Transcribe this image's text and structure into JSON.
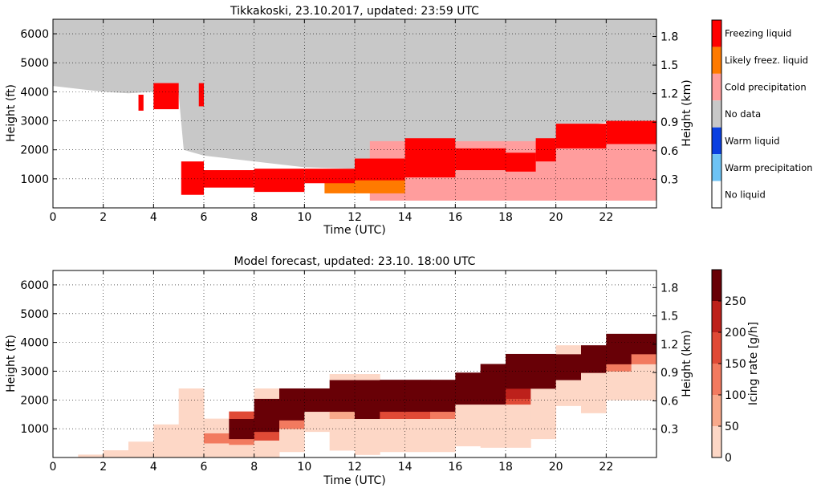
{
  "chart_data": [
    {
      "type": "heatmap",
      "title": "Tikkakoski, 23.10.2017, updated: 23:59 UTC",
      "xlabel": "Time (UTC)",
      "ylabel": "Height (ft)",
      "ylabel_right": "Height (km)",
      "xlim": [
        0,
        24
      ],
      "ylim": [
        0,
        6500
      ],
      "xticks": [
        "0",
        "2",
        "4",
        "6",
        "8",
        "10",
        "12",
        "14",
        "16",
        "18",
        "20",
        "22"
      ],
      "yticks": [
        "1000",
        "2000",
        "3000",
        "4000",
        "5000",
        "6000"
      ],
      "yticks_right": [
        "0.3",
        "0.6",
        "0.9",
        "1.2",
        "1.5",
        "1.8"
      ],
      "grid": true,
      "legend": {
        "placement": "right",
        "entries": [
          {
            "label": "Freezing liquid",
            "color": "#ff0000"
          },
          {
            "label": "Likely freez. liquid",
            "color": "#ff7a00"
          },
          {
            "label": "Cold precipitation",
            "color": "#ff9d9d"
          },
          {
            "label": "No data",
            "color": "#c8c8c8"
          },
          {
            "label": "Warm liquid",
            "color": "#0a3fe0"
          },
          {
            "label": "Warm precipitation",
            "color": "#6ec3f5"
          },
          {
            "label": "No liquid",
            "color": "#ffffff"
          }
        ]
      },
      "regions": {
        "no_data_top": [
          [
            0,
            4200
          ],
          [
            2,
            4000
          ],
          [
            3,
            3950
          ],
          [
            4,
            4000
          ],
          [
            5,
            3900
          ],
          [
            5.2,
            2000
          ],
          [
            6,
            1800
          ],
          [
            10,
            1400
          ],
          [
            12,
            1350
          ],
          [
            14,
            2050
          ],
          [
            16,
            1850
          ],
          [
            18,
            1800
          ],
          [
            19.5,
            1800
          ],
          [
            20,
            2400
          ],
          [
            21,
            2800
          ],
          [
            22,
            2950
          ],
          [
            24,
            3000
          ]
        ],
        "freezing_liquid_band": [
          {
            "x": [
              5.1,
              6.0
            ],
            "bottom": 450,
            "top": 1600
          },
          {
            "x": [
              6.0,
              8.0
            ],
            "bottom": 700,
            "top": 1300
          },
          {
            "x": [
              8.0,
              10.0
            ],
            "bottom": 550,
            "top": 1350
          },
          {
            "x": [
              10.0,
              12.0
            ],
            "bottom": 850,
            "top": 1350
          },
          {
            "x": [
              12.0,
              14.0
            ],
            "bottom": 950,
            "top": 1700
          },
          {
            "x": [
              14.0,
              16.0
            ],
            "bottom": 1050,
            "top": 2400
          },
          {
            "x": [
              16.0,
              18.0
            ],
            "bottom": 1300,
            "top": 2050
          },
          {
            "x": [
              18.0,
              19.2
            ],
            "bottom": 1250,
            "top": 1900
          },
          {
            "x": [
              19.2,
              20.0
            ],
            "bottom": 1600,
            "top": 2400
          },
          {
            "x": [
              20.0,
              22.0
            ],
            "bottom": 2050,
            "top": 2900
          },
          {
            "x": [
              22.0,
              24.0
            ],
            "bottom": 2200,
            "top": 3000
          }
        ],
        "freezing_liquid_patches": [
          {
            "x": [
              4.0,
              5.0
            ],
            "bottom": 3400,
            "top": 4300
          },
          {
            "x": [
              5.8,
              6.0
            ],
            "bottom": 3500,
            "top": 4300
          },
          {
            "x": [
              3.4,
              3.6
            ],
            "bottom": 3350,
            "top": 3900
          }
        ],
        "likely_freez_patch": {
          "x": [
            10.8,
            14.0
          ],
          "bottom": 500,
          "top": 1000
        },
        "cold_precip_region": {
          "x": [
            12.6,
            24.0
          ],
          "bottom": 250,
          "top": 2300
        }
      }
    },
    {
      "type": "heatmap",
      "title": "Model forecast, updated: 23.10. 18:00 UTC",
      "xlabel": "Time (UTC)",
      "ylabel": "Height (ft)",
      "ylabel_right": "Height (km)",
      "xlim": [
        0,
        24
      ],
      "ylim": [
        0,
        6500
      ],
      "xticks": [
        "0",
        "2",
        "4",
        "6",
        "8",
        "10",
        "12",
        "14",
        "16",
        "18",
        "20",
        "22"
      ],
      "yticks": [
        "1000",
        "2000",
        "3000",
        "4000",
        "5000",
        "6000"
      ],
      "yticks_right": [
        "0.3",
        "0.6",
        "0.9",
        "1.2",
        "1.5",
        "1.8"
      ],
      "grid": true,
      "colorbar": {
        "label": "Icing rate [g/h]",
        "ticks": [
          "0",
          "50",
          "100",
          "150",
          "200",
          "250"
        ],
        "levels": [
          0,
          50,
          100,
          150,
          200,
          250,
          300
        ],
        "colors": [
          "#fdd7c6",
          "#f8a98b",
          "#f27a5f",
          "#e04a36",
          "#bd211b",
          "#680006"
        ]
      },
      "cells": [
        {
          "x": [
            1,
            2
          ],
          "y": [
            0,
            100
          ],
          "level": 0
        },
        {
          "x": [
            2,
            3
          ],
          "y": [
            0,
            250
          ],
          "level": 0
        },
        {
          "x": [
            3,
            4
          ],
          "y": [
            0,
            550
          ],
          "level": 0
        },
        {
          "x": [
            4,
            5
          ],
          "y": [
            0,
            1150
          ],
          "level": 0
        },
        {
          "x": [
            5,
            6
          ],
          "y": [
            0,
            2400
          ],
          "level": 0
        },
        {
          "x": [
            6,
            7
          ],
          "y": [
            0,
            500
          ],
          "level": 0
        },
        {
          "x": [
            6,
            7
          ],
          "y": [
            500,
            850
          ],
          "level": 2
        },
        {
          "x": [
            6,
            7
          ],
          "y": [
            850,
            1350
          ],
          "level": 0
        },
        {
          "x": [
            7,
            8
          ],
          "y": [
            0,
            450
          ],
          "level": 0
        },
        {
          "x": [
            7,
            8
          ],
          "y": [
            450,
            650
          ],
          "level": 2
        },
        {
          "x": [
            7,
            8
          ],
          "y": [
            650,
            1350
          ],
          "level": 5
        },
        {
          "x": [
            7,
            8
          ],
          "y": [
            1350,
            1600
          ],
          "level": 3
        },
        {
          "x": [
            8,
            9
          ],
          "y": [
            0,
            600
          ],
          "level": 0
        },
        {
          "x": [
            8,
            9
          ],
          "y": [
            600,
            900
          ],
          "level": 3
        },
        {
          "x": [
            8,
            9
          ],
          "y": [
            900,
            2050
          ],
          "level": 5
        },
        {
          "x": [
            8,
            9
          ],
          "y": [
            2050,
            2400
          ],
          "level": 0
        },
        {
          "x": [
            9,
            10
          ],
          "y": [
            200,
            1000
          ],
          "level": 0
        },
        {
          "x": [
            9,
            10
          ],
          "y": [
            1000,
            1300
          ],
          "level": 2
        },
        {
          "x": [
            9,
            10
          ],
          "y": [
            1300,
            2400
          ],
          "level": 5
        },
        {
          "x": [
            10,
            11
          ],
          "y": [
            900,
            1600
          ],
          "level": 0
        },
        {
          "x": [
            10,
            11
          ],
          "y": [
            1600,
            2400
          ],
          "level": 5
        },
        {
          "x": [
            11,
            12
          ],
          "y": [
            250,
            1350
          ],
          "level": 0
        },
        {
          "x": [
            11,
            12
          ],
          "y": [
            1350,
            1600
          ],
          "level": 1
        },
        {
          "x": [
            11,
            12
          ],
          "y": [
            1600,
            2700
          ],
          "level": 5
        },
        {
          "x": [
            11,
            12
          ],
          "y": [
            2700,
            2900
          ],
          "level": 0
        },
        {
          "x": [
            12,
            13
          ],
          "y": [
            100,
            1350
          ],
          "level": 0
        },
        {
          "x": [
            12,
            13
          ],
          "y": [
            1350,
            2700
          ],
          "level": 5
        },
        {
          "x": [
            12,
            13
          ],
          "y": [
            2700,
            2900
          ],
          "level": 0
        },
        {
          "x": [
            13,
            14
          ],
          "y": [
            200,
            1350
          ],
          "level": 0
        },
        {
          "x": [
            13,
            14
          ],
          "y": [
            1350,
            1600
          ],
          "level": 3
        },
        {
          "x": [
            13,
            14
          ],
          "y": [
            1600,
            2700
          ],
          "level": 5
        },
        {
          "x": [
            14,
            15
          ],
          "y": [
            200,
            1350
          ],
          "level": 0
        },
        {
          "x": [
            14,
            15
          ],
          "y": [
            1350,
            1600
          ],
          "level": 3
        },
        {
          "x": [
            14,
            15
          ],
          "y": [
            1600,
            2700
          ],
          "level": 5
        },
        {
          "x": [
            15,
            16
          ],
          "y": [
            200,
            1350
          ],
          "level": 0
        },
        {
          "x": [
            15,
            16
          ],
          "y": [
            1350,
            1600
          ],
          "level": 2
        },
        {
          "x": [
            15,
            16
          ],
          "y": [
            1600,
            2700
          ],
          "level": 5
        },
        {
          "x": [
            16,
            17
          ],
          "y": [
            400,
            1850
          ],
          "level": 0
        },
        {
          "x": [
            16,
            17
          ],
          "y": [
            1850,
            2950
          ],
          "level": 5
        },
        {
          "x": [
            17,
            18
          ],
          "y": [
            350,
            1850
          ],
          "level": 0
        },
        {
          "x": [
            17,
            18
          ],
          "y": [
            1850,
            3250
          ],
          "level": 5
        },
        {
          "x": [
            18,
            19
          ],
          "y": [
            350,
            1850
          ],
          "level": 0
        },
        {
          "x": [
            18,
            19
          ],
          "y": [
            1850,
            2050
          ],
          "level": 3
        },
        {
          "x": [
            18,
            19
          ],
          "y": [
            2050,
            2400
          ],
          "level": 4
        },
        {
          "x": [
            18,
            19
          ],
          "y": [
            2400,
            3600
          ],
          "level": 5
        },
        {
          "x": [
            19,
            20
          ],
          "y": [
            650,
            2400
          ],
          "level": 0
        },
        {
          "x": [
            19,
            20
          ],
          "y": [
            2400,
            3600
          ],
          "level": 5
        },
        {
          "x": [
            20,
            21
          ],
          "y": [
            1800,
            2700
          ],
          "level": 0
        },
        {
          "x": [
            20,
            21
          ],
          "y": [
            2700,
            3600
          ],
          "level": 5
        },
        {
          "x": [
            20,
            21
          ],
          "y": [
            3600,
            3900
          ],
          "level": 0
        },
        {
          "x": [
            21,
            22
          ],
          "y": [
            1550,
            2950
          ],
          "level": 0
        },
        {
          "x": [
            21,
            22
          ],
          "y": [
            2950,
            3900
          ],
          "level": 5
        },
        {
          "x": [
            22,
            23
          ],
          "y": [
            2000,
            3000
          ],
          "level": 0
        },
        {
          "x": [
            22,
            23
          ],
          "y": [
            3000,
            3250
          ],
          "level": 2
        },
        {
          "x": [
            22,
            23
          ],
          "y": [
            3250,
            4300
          ],
          "level": 5
        },
        {
          "x": [
            23,
            24
          ],
          "y": [
            2000,
            3250
          ],
          "level": 0
        },
        {
          "x": [
            23,
            24
          ],
          "y": [
            3250,
            3600
          ],
          "level": 2
        },
        {
          "x": [
            23,
            24
          ],
          "y": [
            3600,
            4300
          ],
          "level": 5
        }
      ]
    }
  ]
}
